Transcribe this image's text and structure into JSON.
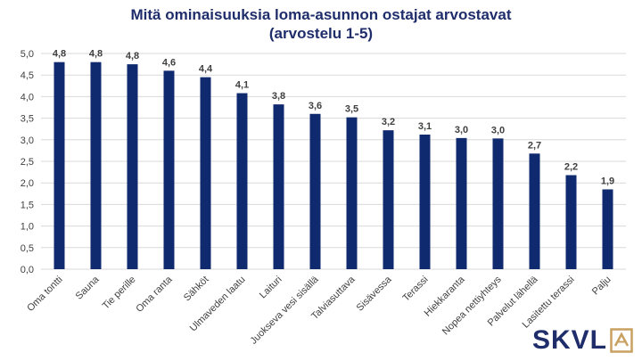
{
  "chart_data": {
    "type": "bar",
    "title_lines": [
      "Mitä ominaisuuksia loma-asunnon ostajat arvostavat",
      "(arvostelu 1-5)"
    ],
    "categories": [
      "Oma tontti",
      "Sauna",
      "Tie perille",
      "Oma ranta",
      "Sähköt",
      "Ulmaveden laatu",
      "Laituri",
      "Juokseva vesi sisällä",
      "Talviasuttava",
      "Sisävessa",
      "Terassi",
      "Hiekkaranta",
      "Nopea nettiyhteys",
      "Palvelut lähellä",
      "Lasitettu terassi",
      "Palju"
    ],
    "values": [
      4.8,
      4.8,
      4.75,
      4.6,
      4.45,
      4.08,
      3.82,
      3.6,
      3.52,
      3.22,
      3.12,
      3.04,
      3.03,
      2.68,
      2.18,
      1.85
    ],
    "value_labels": [
      "4,8",
      "4,8",
      "4,8",
      "4,6",
      "4,4",
      "4,1",
      "3,8",
      "3,6",
      "3,5",
      "3,2",
      "3,1",
      "3,0",
      "3,0",
      "2,7",
      "2,2",
      "1,9"
    ],
    "ylim": [
      0,
      5
    ],
    "yticks": [
      "0,0",
      "0,5",
      "1,0",
      "1,5",
      "2,0",
      "2,5",
      "3,0",
      "3,5",
      "4,0",
      "4,5",
      "5,0"
    ],
    "grid": true,
    "bar_color": "#0f2a6e",
    "gridline_color": "#d9d9d9",
    "text_color": "#404040"
  },
  "logo": {
    "text": "SKVL",
    "brand_color": "#1f2d6b",
    "accent_color": "#c8a060",
    "icon": "house-a-icon"
  }
}
